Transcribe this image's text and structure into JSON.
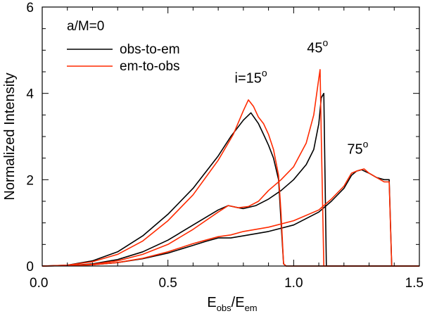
{
  "chart_data": {
    "type": "line",
    "title": "",
    "legend_title": "a/M=0",
    "legend_position": "top-left",
    "grid": false,
    "xlabel": {
      "base": "E",
      "sub": "obs",
      "sep": "/",
      "base2": "E",
      "sub2": "em"
    },
    "ylabel": "Normalized Intensity",
    "xlim": [
      0.0,
      1.5
    ],
    "ylim": [
      0,
      6
    ],
    "x_ticks": [
      0.0,
      0.5,
      1.0,
      1.5
    ],
    "x_tick_labels": [
      "0.0",
      "0.5",
      "1.0",
      "1.5"
    ],
    "y_ticks": [
      0,
      2,
      4,
      6
    ],
    "y_tick_labels": [
      "0",
      "2",
      "4",
      "6"
    ],
    "annotations": [
      {
        "name": "annotation-i15",
        "text": "i=15",
        "sup": "o",
        "x": 0.83,
        "y": 4.25
      },
      {
        "name": "annotation-45",
        "text": "45",
        "sup": "o",
        "x": 1.095,
        "y": 4.95
      },
      {
        "name": "annotation-75",
        "text": "75",
        "sup": "o",
        "x": 1.255,
        "y": 2.6
      }
    ],
    "series": [
      {
        "name": "obs-to-em",
        "color": "#000000",
        "curves": [
          {
            "label": "i=15",
            "x": [
              0.0,
              0.1,
              0.2,
              0.3,
              0.4,
              0.5,
              0.6,
              0.7,
              0.75,
              0.8,
              0.83,
              0.86,
              0.88,
              0.9,
              0.92,
              0.94,
              0.95,
              0.96,
              0.97,
              1.5
            ],
            "y": [
              0,
              0.02,
              0.12,
              0.33,
              0.7,
              1.2,
              1.8,
              2.55,
              3.0,
              3.38,
              3.55,
              3.3,
              3.05,
              2.8,
              2.5,
              2.0,
              1.0,
              0.05,
              0,
              0
            ]
          },
          {
            "label": "45",
            "x": [
              0.0,
              0.1,
              0.2,
              0.3,
              0.4,
              0.5,
              0.6,
              0.7,
              0.74,
              0.78,
              0.8,
              0.85,
              0.9,
              0.95,
              1.0,
              1.05,
              1.08,
              1.1,
              1.11,
              1.12,
              1.13,
              1.5
            ],
            "y": [
              0,
              0.01,
              0.05,
              0.15,
              0.33,
              0.6,
              0.95,
              1.3,
              1.4,
              1.35,
              1.33,
              1.4,
              1.55,
              1.75,
              2.0,
              2.35,
              2.7,
              3.3,
              3.9,
              4.0,
              0,
              0
            ]
          },
          {
            "label": "75",
            "x": [
              0.0,
              0.1,
              0.2,
              0.3,
              0.4,
              0.5,
              0.6,
              0.65,
              0.7,
              0.75,
              0.8,
              0.9,
              1.0,
              1.1,
              1.15,
              1.2,
              1.23,
              1.25,
              1.27,
              1.3,
              1.33,
              1.36,
              1.37,
              1.38,
              1.39,
              1.5
            ],
            "y": [
              0,
              0.01,
              0.03,
              0.08,
              0.17,
              0.3,
              0.48,
              0.57,
              0.65,
              0.65,
              0.7,
              0.8,
              0.95,
              1.25,
              1.5,
              1.8,
              2.1,
              2.2,
              2.23,
              2.15,
              2.05,
              2.0,
              2.0,
              2.0,
              0,
              0
            ]
          }
        ]
      },
      {
        "name": "em-to-obs",
        "color": "#ff2a00",
        "curves": [
          {
            "label": "i=15",
            "x": [
              0.0,
              0.1,
              0.2,
              0.3,
              0.4,
              0.5,
              0.6,
              0.7,
              0.76,
              0.8,
              0.82,
              0.84,
              0.86,
              0.88,
              0.9,
              0.92,
              0.94,
              0.95,
              0.96,
              0.97,
              1.5
            ],
            "y": [
              0,
              0.02,
              0.1,
              0.27,
              0.58,
              1.05,
              1.65,
              2.45,
              3.05,
              3.6,
              3.85,
              3.7,
              3.45,
              3.3,
              3.05,
              2.7,
              2.1,
              1.2,
              0.05,
              0,
              0
            ]
          },
          {
            "label": "45",
            "x": [
              0.0,
              0.1,
              0.2,
              0.3,
              0.4,
              0.5,
              0.6,
              0.7,
              0.74,
              0.78,
              0.82,
              0.86,
              0.9,
              0.95,
              1.0,
              1.05,
              1.08,
              1.1,
              1.105,
              1.11,
              1.12,
              1.5
            ],
            "y": [
              0,
              0.01,
              0.04,
              0.12,
              0.27,
              0.5,
              0.85,
              1.25,
              1.4,
              1.35,
              1.38,
              1.5,
              1.75,
              2.0,
              2.3,
              2.85,
              3.5,
              4.35,
              4.55,
              3.0,
              0,
              0
            ]
          },
          {
            "label": "75",
            "x": [
              0.0,
              0.1,
              0.2,
              0.3,
              0.4,
              0.5,
              0.6,
              0.65,
              0.7,
              0.75,
              0.8,
              0.9,
              1.0,
              1.1,
              1.15,
              1.2,
              1.23,
              1.25,
              1.28,
              1.3,
              1.33,
              1.36,
              1.37,
              1.38,
              1.39,
              1.5
            ],
            "y": [
              0,
              0.01,
              0.03,
              0.08,
              0.18,
              0.33,
              0.52,
              0.6,
              0.68,
              0.72,
              0.8,
              0.9,
              1.05,
              1.3,
              1.55,
              1.85,
              2.15,
              2.2,
              2.25,
              2.15,
              2.05,
              1.95,
              1.95,
              1.95,
              0,
              0
            ]
          }
        ]
      }
    ]
  }
}
